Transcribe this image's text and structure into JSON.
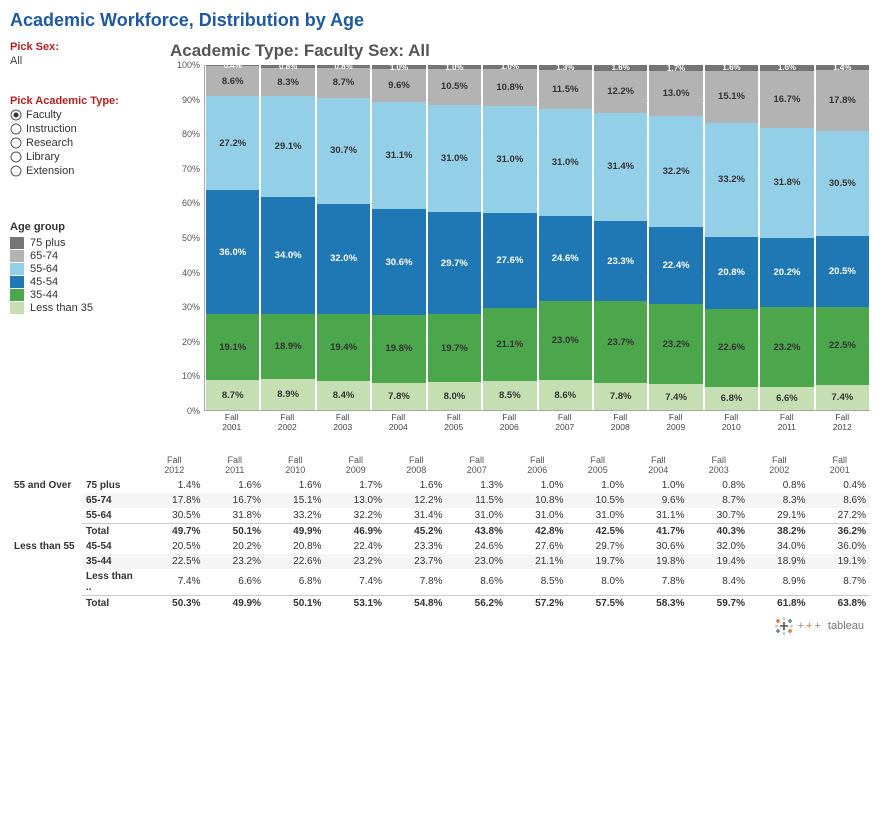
{
  "title": "Academic Workforce, Distribution by Age",
  "controls": {
    "sex": {
      "label": "Pick Sex:",
      "value": "All"
    },
    "type": {
      "label": "Pick Academic Type:",
      "options": [
        "Faculty",
        "Instruction",
        "Research",
        "Library",
        "Extension"
      ],
      "selected": "Faculty"
    }
  },
  "chart": {
    "title": "Academic Type:  Faculty    Sex:  All",
    "type": "stacked-bar-100",
    "ylim": [
      0,
      100
    ],
    "ytick_step": 10,
    "y_suffix": "%",
    "grid_color": "#dddddd",
    "categories": [
      "Fall 2001",
      "Fall 2002",
      "Fall 2003",
      "Fall 2004",
      "Fall 2005",
      "Fall 2006",
      "Fall 2007",
      "Fall 2008",
      "Fall 2009",
      "Fall 2010",
      "Fall 2011",
      "Fall 2012"
    ],
    "legend_title": "Age group",
    "series_order": [
      "Less than 35",
      "35-44",
      "45-54",
      "55-64",
      "65-74",
      "75 plus"
    ],
    "series_colors": {
      "75 plus": "#757575",
      "65-74": "#b3b3b3",
      "55-64": "#94cfe8",
      "45-54": "#1f77b4",
      "35-44": "#4ca64c",
      "Less than 35": "#c5dfb3"
    },
    "data": {
      "Fall 2001": {
        "Less than 35": 8.7,
        "35-44": 19.1,
        "45-54": 36.0,
        "55-64": 27.2,
        "65-74": 8.6,
        "75 plus": 0.4
      },
      "Fall 2002": {
        "Less than 35": 8.9,
        "35-44": 18.9,
        "45-54": 34.0,
        "55-64": 29.1,
        "65-74": 8.3,
        "75 plus": 0.8
      },
      "Fall 2003": {
        "Less than 35": 8.4,
        "35-44": 19.4,
        "45-54": 32.0,
        "55-64": 30.7,
        "65-74": 8.7,
        "75 plus": 0.8
      },
      "Fall 2004": {
        "Less than 35": 7.8,
        "35-44": 19.8,
        "45-54": 30.6,
        "55-64": 31.1,
        "65-74": 9.6,
        "75 plus": 1.0
      },
      "Fall 2005": {
        "Less than 35": 8.0,
        "35-44": 19.7,
        "45-54": 29.7,
        "55-64": 31.0,
        "65-74": 10.5,
        "75 plus": 1.0
      },
      "Fall 2006": {
        "Less than 35": 8.5,
        "35-44": 21.1,
        "45-54": 27.6,
        "55-64": 31.0,
        "65-74": 10.8,
        "75 plus": 1.0
      },
      "Fall 2007": {
        "Less than 35": 8.6,
        "35-44": 23.0,
        "45-54": 24.6,
        "55-64": 31.0,
        "65-74": 11.5,
        "75 plus": 1.3
      },
      "Fall 2008": {
        "Less than 35": 7.8,
        "35-44": 23.7,
        "45-54": 23.3,
        "55-64": 31.4,
        "65-74": 12.2,
        "75 plus": 1.6
      },
      "Fall 2009": {
        "Less than 35": 7.4,
        "35-44": 23.2,
        "45-54": 22.4,
        "55-64": 32.2,
        "65-74": 13.0,
        "75 plus": 1.7
      },
      "Fall 2010": {
        "Less than 35": 6.8,
        "35-44": 22.6,
        "45-54": 20.8,
        "55-64": 33.2,
        "65-74": 15.1,
        "75 plus": 1.6
      },
      "Fall 2011": {
        "Less than 35": 6.6,
        "35-44": 23.2,
        "45-54": 20.2,
        "55-64": 31.8,
        "65-74": 16.7,
        "75 plus": 1.6
      },
      "Fall 2012": {
        "Less than 35": 7.4,
        "35-44": 22.5,
        "45-54": 20.5,
        "55-64": 30.5,
        "65-74": 17.8,
        "75 plus": 1.4
      }
    }
  },
  "table": {
    "columns": [
      "Fall 2012",
      "Fall 2011",
      "Fall 2010",
      "Fall 2009",
      "Fall 2008",
      "Fall 2007",
      "Fall 2006",
      "Fall 2005",
      "Fall 2004",
      "Fall 2003",
      "Fall 2002",
      "Fall 2001"
    ],
    "groups": [
      {
        "label": "55 and Over",
        "rows": [
          {
            "label": "75 plus",
            "vals": [
              "1.4%",
              "1.6%",
              "1.6%",
              "1.7%",
              "1.6%",
              "1.3%",
              "1.0%",
              "1.0%",
              "1.0%",
              "0.8%",
              "0.8%",
              "0.4%"
            ]
          },
          {
            "label": "65-74",
            "vals": [
              "17.8%",
              "16.7%",
              "15.1%",
              "13.0%",
              "12.2%",
              "11.5%",
              "10.8%",
              "10.5%",
              "9.6%",
              "8.7%",
              "8.3%",
              "8.6%"
            ]
          },
          {
            "label": "55-64",
            "vals": [
              "30.5%",
              "31.8%",
              "33.2%",
              "32.2%",
              "31.4%",
              "31.0%",
              "31.0%",
              "31.0%",
              "31.1%",
              "30.7%",
              "29.1%",
              "27.2%"
            ]
          }
        ],
        "total": {
          "label": "Total",
          "vals": [
            "49.7%",
            "50.1%",
            "49.9%",
            "46.9%",
            "45.2%",
            "43.8%",
            "42.8%",
            "42.5%",
            "41.7%",
            "40.3%",
            "38.2%",
            "36.2%"
          ]
        }
      },
      {
        "label": "Less than 55",
        "rows": [
          {
            "label": "45-54",
            "vals": [
              "20.5%",
              "20.2%",
              "20.8%",
              "22.4%",
              "23.3%",
              "24.6%",
              "27.6%",
              "29.7%",
              "30.6%",
              "32.0%",
              "34.0%",
              "36.0%"
            ]
          },
          {
            "label": "35-44",
            "vals": [
              "22.5%",
              "23.2%",
              "22.6%",
              "23.2%",
              "23.7%",
              "23.0%",
              "21.1%",
              "19.7%",
              "19.8%",
              "19.4%",
              "18.9%",
              "19.1%"
            ]
          },
          {
            "label": "Less than ..",
            "vals": [
              "7.4%",
              "6.6%",
              "6.8%",
              "7.4%",
              "7.8%",
              "8.6%",
              "8.5%",
              "8.0%",
              "7.8%",
              "8.4%",
              "8.9%",
              "8.7%"
            ]
          }
        ],
        "total": {
          "label": "Total",
          "vals": [
            "50.3%",
            "49.9%",
            "50.1%",
            "53.1%",
            "54.8%",
            "56.2%",
            "57.2%",
            "57.5%",
            "58.3%",
            "59.7%",
            "61.8%",
            "63.8%"
          ]
        }
      }
    ]
  },
  "footer_brand": "tableau"
}
